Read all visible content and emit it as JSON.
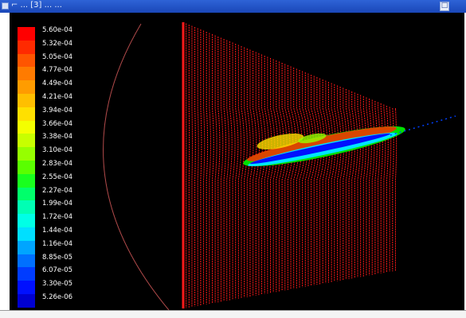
{
  "window": {
    "title": "⌐ ... [3] ... ...",
    "button_glyph": "□"
  },
  "colorbar": {
    "labels": [
      "5.60e-04",
      "5.32e-04",
      "5.05e-04",
      "4.77e-04",
      "4.49e-04",
      "4.21e-04",
      "3.94e-04",
      "3.66e-04",
      "3.38e-04",
      "3.10e-04",
      "2.83e-04",
      "2.55e-04",
      "2.27e-04",
      "1.99e-04",
      "1.72e-04",
      "1.44e-04",
      "1.16e-04",
      "8.85e-05",
      "6.07e-05",
      "3.30e-05",
      "5.26e-06"
    ],
    "colors": [
      "#ff0000",
      "#ff2a00",
      "#ff5500",
      "#ff7b00",
      "#ff9c00",
      "#ffbf00",
      "#ffe000",
      "#f4ff00",
      "#c8ff00",
      "#96ff00",
      "#5aff00",
      "#19ff1e",
      "#00ff6b",
      "#00ffb4",
      "#00ffe6",
      "#00dfff",
      "#00a5ff",
      "#0070ff",
      "#003cff",
      "#0010ff",
      "#0000d0"
    ]
  },
  "scene": {
    "streamline_color": "#ff1a1a",
    "boundary_arc_color": "#b04a4a"
  }
}
